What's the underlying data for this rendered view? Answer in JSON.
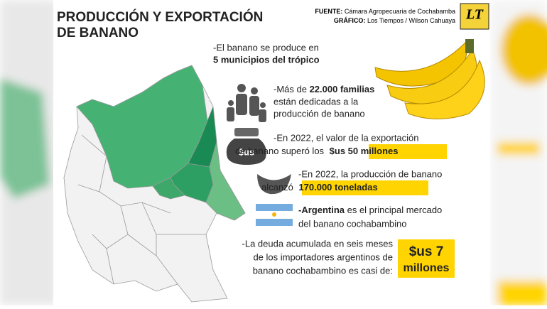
{
  "header": {
    "title_lines": [
      "PRODUCCIÓN Y EXPORTACIÓN",
      "DE BANANO"
    ],
    "source_label": "FUENTE:",
    "source": "Cámara Agropecuaria de Cochabamba",
    "graphic_label": "GRÁFICO:",
    "graphic": "Los Tiempos / Wilson Cahuaya",
    "logo": "LT"
  },
  "facts": [
    {
      "lines": [
        [
          "-El banano se produce en"
        ],
        [
          "5 municipios del trópico"
        ]
      ]
    },
    {
      "lines": [
        [
          "-Más de ",
          "22.000 familias"
        ],
        [
          "están dedicadas a la"
        ],
        [
          "producción de banano"
        ]
      ]
    },
    {
      "icon_text": "$us",
      "lines": [
        [
          "-En 2022, el valor de la exportación"
        ],
        [
          "de banano superó los ",
          "$us 50 millones"
        ]
      ]
    },
    {
      "lines": [
        [
          "-En 2022, la producción de banano"
        ],
        [
          "alcanzó ",
          "170.000 toneladas"
        ]
      ]
    },
    {
      "lines": [
        [
          "-Argentina",
          " es el principal mercado"
        ],
        [
          "del banano cochabambino"
        ]
      ]
    },
    {
      "lines": [
        [
          "-La deuda acumulada en seis meses"
        ],
        [
          "de los importadores argentinos de"
        ],
        [
          "banano cochabambino es casi de:"
        ]
      ],
      "highlight_lines": [
        "$us 7",
        "millones"
      ]
    }
  ]
}
